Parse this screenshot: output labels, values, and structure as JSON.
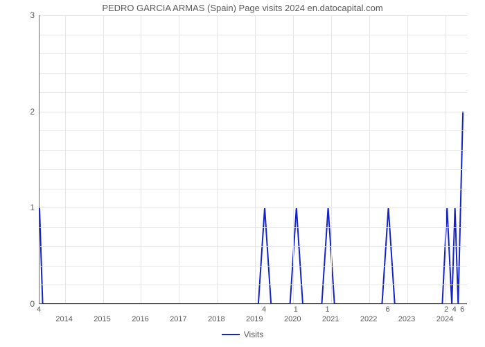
{
  "chart": {
    "type": "line",
    "title": "PEDRO GARCIA ARMAS (Spain) Page visits 2024 en.datocapital.com",
    "title_fontsize": 13,
    "title_color": "#5a5a5a",
    "background_color": "#ffffff",
    "grid_color": "#e5e5e5",
    "axis_color": "#666666",
    "tick_color": "#5a5a5a",
    "tick_fontsize": 12,
    "x_tick_fontsize": 11,
    "line_color": "#1422c6",
    "line_width": 2,
    "x_domain": [
      0,
      135
    ],
    "y_axis": {
      "ylim": [
        0,
        3
      ],
      "ticks": [
        0,
        1,
        2,
        3
      ],
      "minor_step": 0.2
    },
    "x_year_ticks": [
      {
        "x": 8,
        "label": "2014"
      },
      {
        "x": 20,
        "label": "2015"
      },
      {
        "x": 32,
        "label": "2016"
      },
      {
        "x": 44,
        "label": "2017"
      },
      {
        "x": 56,
        "label": "2018"
      },
      {
        "x": 68,
        "label": "2019"
      },
      {
        "x": 80,
        "label": "2020"
      },
      {
        "x": 92,
        "label": "2021"
      },
      {
        "x": 104,
        "label": "2022"
      },
      {
        "x": 116,
        "label": "2023"
      },
      {
        "x": 128,
        "label": "2024"
      }
    ],
    "data_value_labels": [
      {
        "x": 0,
        "label": "4"
      },
      {
        "x": 71,
        "label": "4"
      },
      {
        "x": 81,
        "label": "1"
      },
      {
        "x": 91,
        "label": "1"
      },
      {
        "x": 110,
        "label": "6"
      },
      {
        "x": 128.5,
        "label": "2"
      },
      {
        "x": 131,
        "label": "4"
      },
      {
        "x": 133.5,
        "label": "6"
      }
    ],
    "series": [
      {
        "x": 0,
        "y": 1.0
      },
      {
        "x": 1,
        "y": 0.0
      },
      {
        "x": 69,
        "y": 0.0
      },
      {
        "x": 71,
        "y": 1.0
      },
      {
        "x": 73,
        "y": 0.0
      },
      {
        "x": 79,
        "y": 0.0
      },
      {
        "x": 81,
        "y": 1.0
      },
      {
        "x": 83,
        "y": 0.0
      },
      {
        "x": 89,
        "y": 0.0
      },
      {
        "x": 91,
        "y": 1.0
      },
      {
        "x": 93,
        "y": 0.0
      },
      {
        "x": 108,
        "y": 0.0
      },
      {
        "x": 110,
        "y": 1.0
      },
      {
        "x": 112,
        "y": 0.0
      },
      {
        "x": 127,
        "y": 0.0
      },
      {
        "x": 128.5,
        "y": 1.0
      },
      {
        "x": 130,
        "y": 0.0
      },
      {
        "x": 131,
        "y": 1.0
      },
      {
        "x": 132,
        "y": 0.0
      },
      {
        "x": 133.5,
        "y": 2.0
      }
    ],
    "legend": {
      "label": "Visits",
      "swatch_color": "#1422c6",
      "swatch_width": 2
    }
  }
}
